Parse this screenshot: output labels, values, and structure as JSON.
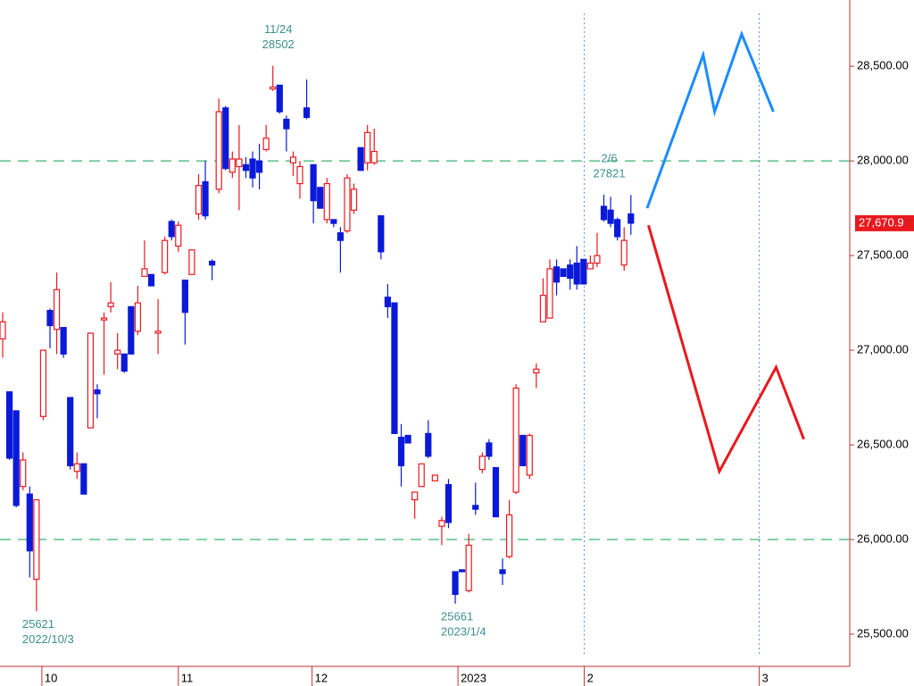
{
  "chart_data": {
    "type": "candlestick",
    "up_color": "#e8191e",
    "down_color": "#0a1ad8",
    "ohlc": [
      [
        27060,
        27200,
        26960,
        27150
      ],
      [
        26780,
        26780,
        26420,
        26430
      ],
      [
        26680,
        26680,
        26170,
        26180
      ],
      [
        26280,
        26460,
        26260,
        26420
      ],
      [
        26240,
        26280,
        25800,
        25940
      ],
      [
        25790,
        26210,
        25621,
        26210
      ],
      [
        26650,
        27000,
        26630,
        27000
      ],
      [
        27210,
        27220,
        27010,
        27130
      ],
      [
        27110,
        27410,
        26980,
        27320
      ],
      [
        27120,
        27120,
        26960,
        26980
      ],
      [
        26750,
        26750,
        26370,
        26390
      ],
      [
        26360,
        26460,
        26320,
        26400
      ],
      [
        26400,
        26400,
        26240,
        26240
      ],
      [
        26590,
        27090,
        26590,
        27090
      ],
      [
        26790,
        26820,
        26640,
        26770
      ],
      [
        27160,
        27200,
        26870,
        27170
      ],
      [
        27230,
        27360,
        27200,
        27250
      ],
      [
        26980,
        27090,
        26900,
        27000
      ],
      [
        26980,
        26980,
        26880,
        26890
      ],
      [
        27230,
        27230,
        26980,
        26980
      ],
      [
        27100,
        27340,
        27080,
        27250
      ],
      [
        27390,
        27580,
        27390,
        27430
      ],
      [
        27400,
        27400,
        27340,
        27340
      ],
      [
        27090,
        27270,
        26980,
        27100
      ],
      [
        27410,
        27600,
        27400,
        27580
      ],
      [
        27680,
        27690,
        27580,
        27600
      ],
      [
        27550,
        27680,
        27520,
        27660
      ],
      [
        27370,
        27370,
        27030,
        27200
      ],
      [
        27400,
        27530,
        27400,
        27530
      ],
      [
        27720,
        27930,
        27690,
        27870
      ],
      [
        27890,
        28000,
        27690,
        27710
      ],
      [
        27470,
        27480,
        27370,
        27450
      ],
      [
        27850,
        28330,
        27830,
        28260
      ],
      [
        28280,
        28290,
        27950,
        27960
      ],
      [
        27940,
        28050,
        27910,
        28010
      ],
      [
        27970,
        28190,
        27740,
        28010
      ],
      [
        27980,
        28020,
        27910,
        27950
      ],
      [
        28010,
        28050,
        27860,
        27910
      ],
      [
        28000,
        28090,
        27850,
        27940
      ],
      [
        28060,
        28190,
        28050,
        28120
      ],
      [
        28380,
        28502,
        28370,
        28390
      ],
      [
        28400,
        28400,
        28250,
        28260
      ],
      [
        28220,
        28240,
        28050,
        28170
      ],
      [
        27990,
        28050,
        27920,
        28020
      ],
      [
        27880,
        28000,
        27800,
        27970
      ],
      [
        28280,
        28430,
        28220,
        28230
      ],
      [
        27980,
        27980,
        27670,
        27790
      ],
      [
        27860,
        27860,
        27750,
        27750
      ],
      [
        27690,
        27910,
        27670,
        27880
      ],
      [
        27690,
        27690,
        27650,
        27670
      ],
      [
        27620,
        27650,
        27410,
        27580
      ],
      [
        27630,
        27930,
        27620,
        27910
      ],
      [
        27740,
        27880,
        27720,
        27850
      ],
      [
        28070,
        28070,
        27950,
        27950
      ],
      [
        27990,
        28190,
        27950,
        28150
      ],
      [
        27990,
        28170,
        27980,
        28050
      ],
      [
        27710,
        27710,
        27480,
        27520
      ],
      [
        27280,
        27350,
        27170,
        27230
      ],
      [
        27250,
        27250,
        26560,
        26560
      ],
      [
        26540,
        26610,
        26280,
        26390
      ],
      [
        26550,
        26550,
        26510,
        26510
      ],
      [
        26210,
        26250,
        26110,
        26250
      ],
      [
        26280,
        26400,
        26280,
        26400
      ],
      [
        26560,
        26630,
        26430,
        26440
      ],
      [
        26310,
        26340,
        26310,
        26340
      ],
      [
        26070,
        26120,
        25970,
        26100
      ],
      [
        26290,
        26320,
        26060,
        26090
      ],
      [
        25830,
        25830,
        25661,
        25710
      ],
      [
        25840,
        25840,
        25830,
        25830
      ],
      [
        25730,
        26030,
        25720,
        25970
      ],
      [
        26180,
        26300,
        26130,
        26160
      ],
      [
        26370,
        26460,
        26350,
        26440
      ],
      [
        26510,
        26530,
        26420,
        26440
      ],
      [
        26380,
        26380,
        26120,
        26120
      ],
      [
        25840,
        25900,
        25760,
        25820
      ],
      [
        25910,
        26210,
        25900,
        26130
      ],
      [
        26250,
        26820,
        26240,
        26800
      ],
      [
        26550,
        26550,
        26390,
        26390
      ],
      [
        26340,
        26560,
        26320,
        26550
      ],
      [
        26880,
        26930,
        26800,
        26900
      ],
      [
        27150,
        27380,
        27150,
        27290
      ],
      [
        27170,
        27480,
        27170,
        27430
      ],
      [
        27440,
        27480,
        27290,
        27360
      ],
      [
        27430,
        27430,
        27390,
        27390
      ],
      [
        27450,
        27480,
        27320,
        27380
      ],
      [
        27460,
        27550,
        27320,
        27350
      ],
      [
        27480,
        27480,
        27350,
        27350
      ],
      [
        27430,
        27500,
        27430,
        27460
      ],
      [
        27460,
        27620,
        27440,
        27500
      ],
      [
        27760,
        27821,
        27680,
        27690
      ],
      [
        27740,
        27810,
        27650,
        27670
      ],
      [
        27690,
        27700,
        27580,
        27600
      ],
      [
        27450,
        27650,
        27420,
        27580
      ],
      [
        27720,
        27820,
        27610,
        27670.9
      ]
    ],
    "xlim": [
      -0.4,
      125.4
    ],
    "xticks": [
      {
        "value": 5.8,
        "label": "10"
      },
      {
        "value": 26,
        "label": "11"
      },
      {
        "value": 45.8,
        "label": "12"
      },
      {
        "value": 67.4,
        "label": "2023"
      },
      {
        "value": 86.1,
        "label": "2",
        "line": "dotted"
      },
      {
        "value": 112,
        "label": "3",
        "line": "dotted"
      }
    ],
    "ylim": [
      25330,
      28850
    ],
    "yticks": [
      {
        "value": 25500,
        "label": "25,500.00"
      },
      {
        "value": 26000,
        "label": "26,000.00"
      },
      {
        "value": 26500,
        "label": "26,500.00"
      },
      {
        "value": 27000,
        "label": "27,000.00"
      },
      {
        "value": 27500,
        "label": "27,500.00"
      },
      {
        "value": 28000,
        "label": "28,000.00"
      },
      {
        "value": 28500,
        "label": "28,500.00"
      }
    ],
    "hlines": [
      28000,
      26000
    ],
    "hline_color": "#3cb371",
    "last_price": {
      "value": 27670.9,
      "label": "27,670.9"
    },
    "annotations": [
      {
        "date": "11/24",
        "value": 28502,
        "side": "high"
      },
      {
        "date": "2/6",
        "value": 27821,
        "side": "high"
      },
      {
        "date": "2022/10/3",
        "value": 25621,
        "side": "low"
      },
      {
        "date": "2023/1/4",
        "value": 25661,
        "side": "low"
      }
    ],
    "annotation_color": "#3c8f8f",
    "projections": [
      {
        "color": "#1a8cff",
        "x": [
          95.4,
          103.7,
          105.4,
          109.4,
          114.1
        ],
        "values": [
          27750,
          28560,
          28260,
          28670,
          28260
        ]
      },
      {
        "color": "#e8191e",
        "x": [
          95.6,
          106.1,
          114.5,
          118.6
        ],
        "values": [
          27660,
          26360,
          26910,
          26530
        ]
      }
    ]
  }
}
